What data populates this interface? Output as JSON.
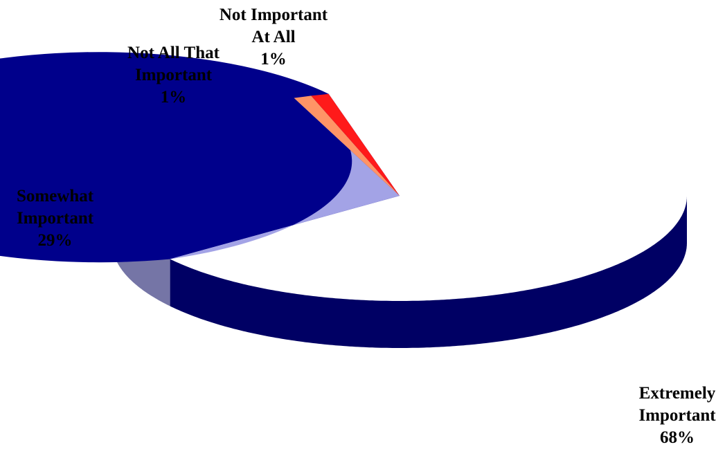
{
  "chart_data": {
    "type": "pie",
    "title": "",
    "slices": [
      {
        "label_lines": [
          "Extremely",
          "Important"
        ],
        "value": 68,
        "value_label": "68%",
        "color": "#00008b"
      },
      {
        "label_lines": [
          "Somewhat",
          "Important"
        ],
        "value": 29,
        "value_label": "29%",
        "color": "#a3a3e6"
      },
      {
        "label_lines": [
          "Not All That",
          "Important"
        ],
        "value": 1,
        "value_label": "1%",
        "color": "#ff9466"
      },
      {
        "label_lines": [
          "Not Important",
          "At All"
        ],
        "value": 1,
        "value_label": "1%",
        "color": "#ff1a1a"
      }
    ],
    "style": "3d-tilted",
    "legend": "none"
  }
}
